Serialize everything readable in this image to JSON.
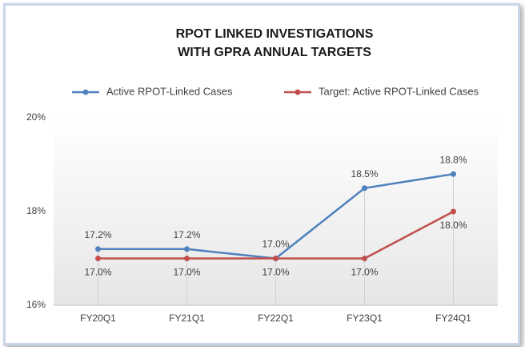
{
  "chart_data": {
    "type": "line",
    "title_lines": [
      "RPOT LINKED INVESTIGATIONS",
      "WITH GPRA ANNUAL TARGETS"
    ],
    "categories": [
      "FY20Q1",
      "FY21Q1",
      "FY22Q1",
      "FY23Q1",
      "FY24Q1"
    ],
    "series": [
      {
        "name": "Active RPOT-Linked Cases",
        "color": "#4f81bd",
        "values": [
          17.2,
          17.2,
          17.0,
          18.5,
          18.8
        ],
        "value_labels": [
          "17.2%",
          "17.2%",
          "17.0%",
          "18.5%",
          "18.8%"
        ]
      },
      {
        "name": "Target: Active RPOT-Linked Cases",
        "color": "#c0504d",
        "values": [
          17.0,
          17.0,
          17.0,
          17.0,
          18.0
        ],
        "value_labels": [
          "17.0%",
          "17.0%",
          "17.0%",
          "17.0%",
          "18.0%"
        ]
      }
    ],
    "ylim": [
      16,
      20
    ],
    "yticks": [
      {
        "value": 16,
        "label": "16%"
      },
      {
        "value": 18,
        "label": "18%"
      },
      {
        "value": 20,
        "label": "20%"
      }
    ],
    "legend": "top"
  }
}
